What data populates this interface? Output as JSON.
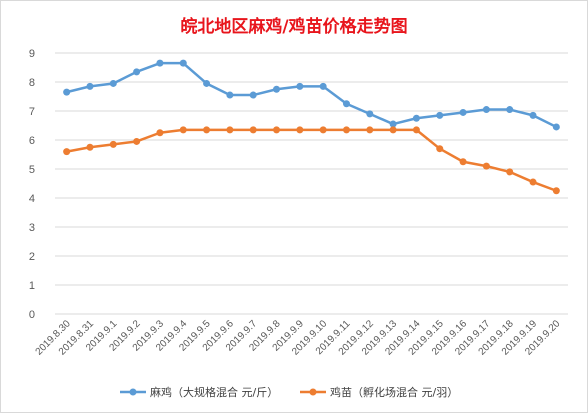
{
  "chart_data": {
    "type": "line",
    "title": "皖北地区麻鸡/鸡苗价格走势图",
    "xlabel": "",
    "ylabel": "",
    "ylim": [
      0,
      9
    ],
    "yticks": [
      "0",
      "1",
      "2",
      "3",
      "4",
      "5",
      "6",
      "7",
      "8",
      "9"
    ],
    "grid": true,
    "legend_position": "bottom",
    "categories": [
      "2019.8.30",
      "2019.8.31",
      "2019.9.1",
      "2019.9.2",
      "2019.9.3",
      "2019.9.4",
      "2019.9.5",
      "2019.9.6",
      "2019.9.7",
      "2019.9.8",
      "2019.9.9",
      "2019.9.10",
      "2019.9.11",
      "2019.9.12",
      "2019.9.13",
      "2019.9.14",
      "2019.9.15",
      "2019.9.16",
      "2019.9.17",
      "2019.9.18",
      "2019.9.19",
      "2019.9.20"
    ],
    "series": [
      {
        "name": "麻鸡（大规格混合 元/斤）",
        "color": "#5b9bd5",
        "values": [
          7.65,
          7.85,
          7.95,
          8.35,
          8.65,
          8.65,
          7.95,
          7.55,
          7.55,
          7.75,
          7.85,
          7.85,
          7.25,
          6.9,
          6.55,
          6.75,
          6.85,
          6.95,
          7.05,
          7.05,
          6.85,
          6.45
        ]
      },
      {
        "name": "鸡苗（孵化场混合 元/羽）",
        "color": "#ed7d31",
        "values": [
          5.6,
          5.75,
          5.85,
          5.95,
          6.25,
          6.35,
          6.35,
          6.35,
          6.35,
          6.35,
          6.35,
          6.35,
          6.35,
          6.35,
          6.35,
          6.35,
          5.7,
          5.25,
          5.1,
          4.9,
          4.55,
          4.25
        ]
      }
    ]
  }
}
